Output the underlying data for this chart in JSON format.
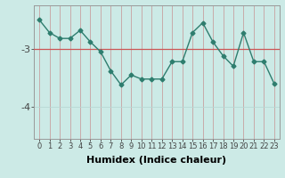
{
  "x": [
    0,
    1,
    2,
    3,
    4,
    5,
    6,
    7,
    8,
    9,
    10,
    11,
    12,
    13,
    14,
    15,
    16,
    17,
    18,
    19,
    20,
    21,
    22,
    23
  ],
  "y": [
    -2.5,
    -2.72,
    -2.82,
    -2.82,
    -2.68,
    -2.88,
    -3.05,
    -3.38,
    -3.62,
    -3.45,
    -3.52,
    -3.52,
    -3.52,
    -3.22,
    -3.22,
    -2.72,
    -2.55,
    -2.88,
    -3.12,
    -3.3,
    -2.72,
    -3.22,
    -3.22,
    -3.6
  ],
  "line_color": "#2e7d6e",
  "background_color": "#cceae6",
  "grid_color_v": "#b8d8d4",
  "grid_color_h": "#c8a0a0",
  "xlabel": "Humidex (Indice chaleur)",
  "ytick_labels": [
    "-3",
    "-4"
  ],
  "ytick_vals": [
    -3,
    -4
  ],
  "ylim": [
    -4.55,
    -2.25
  ],
  "xlim": [
    -0.5,
    23.5
  ],
  "tick_color": "#444444",
  "xlabel_fontsize": 8,
  "xtick_fontsize": 6,
  "ytick_fontsize": 8,
  "marker": "D",
  "marker_size": 2.5,
  "line_width": 1.0,
  "hline_y": -3,
  "hline_color": "#cc5555"
}
